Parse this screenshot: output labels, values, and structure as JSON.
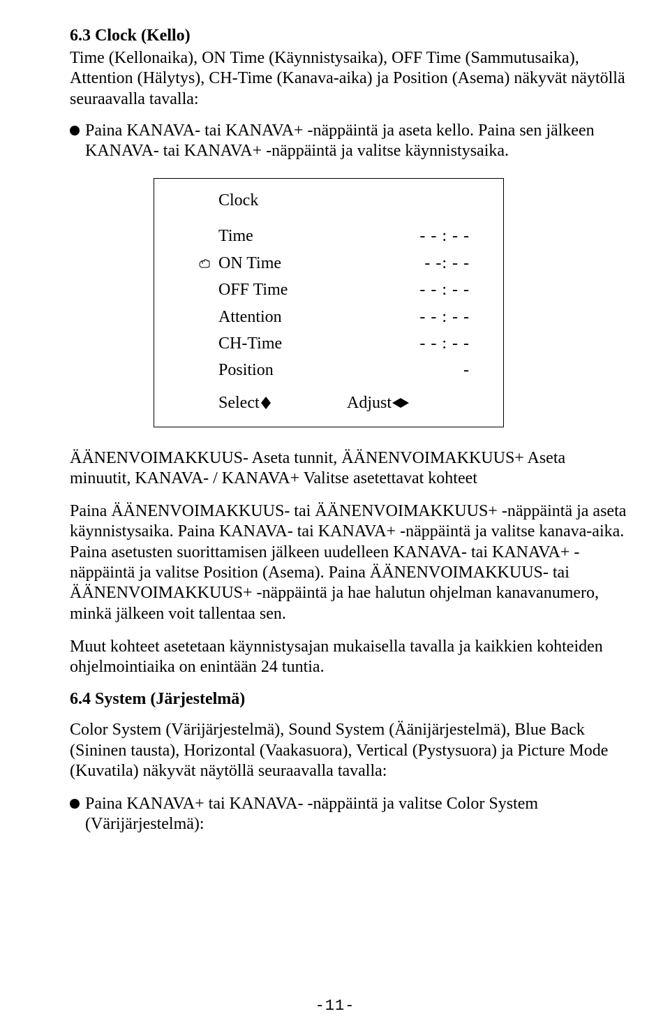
{
  "heading_6_3": "6.3   Clock (Kello)",
  "intro_text": "Time (Kellonaika), ON Time (Käynnistysaika), OFF Time (Sammutusaika), Attention (Hälytys), CH-Time (Kanava-aika) ja Position (Asema) näkyvät näytöllä seuraavalla tavalla:",
  "bullet1": "Paina KANAVA- tai KANAVA+ -näppäintä ja aseta kello. Paina sen jälkeen KANAVA- tai KANAVA+ -näppäintä ja valitse käynnistysaika.",
  "menu": {
    "title": "Clock",
    "rows": [
      {
        "label": "Time",
        "value": "- - : - -",
        "hand": false
      },
      {
        "label": "ON Time",
        "value": "- -: - -",
        "hand": true
      },
      {
        "label": "OFF Time",
        "value": "- - : - -",
        "hand": false
      },
      {
        "label": "Attention",
        "value": "- - : - -",
        "hand": false
      },
      {
        "label": "CH-Time",
        "value": "- - : - -",
        "hand": false
      },
      {
        "label": "Position",
        "value": "-",
        "hand": false
      }
    ],
    "select_label": "Select",
    "adjust_label": "Adjust"
  },
  "vol_line": "ÄÄNENVOIMAKKUUS- Aseta tunnit, ÄÄNENVOIMAKKUUS+ Aseta minuutit, KANAVA- / KANAVA+ Valitse asetettavat kohteet",
  "para2": "Paina ÄÄNENVOIMAKKUUS- tai ÄÄNENVOIMAKKUUS+ -näppäintä ja aseta käynnistysaika. Paina KANAVA- tai KANAVA+ -näppäintä ja valitse kanava-aika. Paina asetusten suorittamisen jälkeen uudelleen KANAVA- tai KANAVA+ -näppäintä ja valitse Position (Asema). Paina ÄÄNENVOIMAKKUUS- tai ÄÄNENVOIMAKKUUS+ -näppäintä ja hae halutun ohjelman kanavanumero, minkä jälkeen voit tallentaa sen.",
  "para3": "Muut kohteet asetetaan käynnistysajan mukaisella tavalla ja kaikkien kohteiden ohjelmointiaika on enintään 24 tuntia.",
  "heading_6_4": "6.4 System (Järjestelmä)",
  "para4": "Color System (Värijärjestelmä), Sound System (Äänijärjestelmä), Blue Back (Sininen tausta), Horizontal (Vaakasuora), Vertical (Pystysuora) ja Picture Mode (Kuvatila) näkyvät näytöllä seuraavalla tavalla:",
  "bullet2": "Paina KANAVA+ tai KANAVA- -näppäintä ja valitse Color System (Värijärjestelmä):",
  "page_number": "-11-"
}
